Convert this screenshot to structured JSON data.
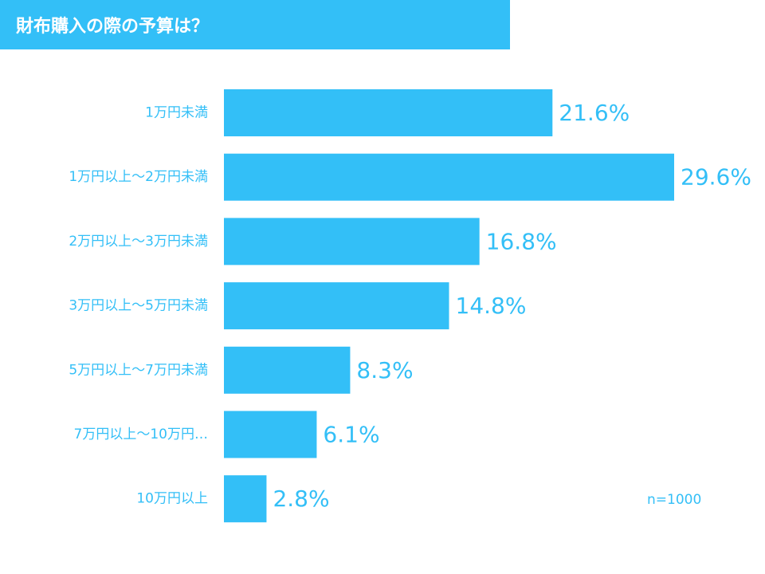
{
  "title": "財布購入の際の予算は？",
  "note": "n=1000",
  "colors": {
    "bar": "#33bff7",
    "label": "#33bff7",
    "title_bg": "#33bff7",
    "title_text": "#ffffff"
  },
  "chart_data": {
    "type": "bar",
    "orientation": "horizontal",
    "title": "財布購入の際の予算は？",
    "categories": [
      "1万円未満",
      "1万円以上〜2万円未満",
      "2万円以上〜3万円未満",
      "3万円以上〜5万円未満",
      "5万円以上〜7万円未満",
      "7万円以上〜10万円…",
      "10万円以上"
    ],
    "values": [
      21.6,
      29.6,
      16.8,
      14.8,
      8.3,
      6.1,
      2.8
    ],
    "value_labels": [
      "21.6%",
      "29.6%",
      "16.8%",
      "14.8%",
      "8.3%",
      "6.1%",
      "2.8%"
    ],
    "unit": "%",
    "xlim": [
      0,
      29.6
    ],
    "grid": false,
    "legend": "none",
    "annotation": "n=1000"
  }
}
